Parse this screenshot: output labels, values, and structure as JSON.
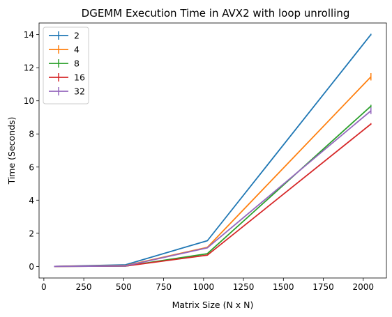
{
  "chart_data": {
    "type": "line",
    "title": "DGEMM Execution Time in AVX2 with loop unrolling",
    "xlabel": "Matrix Size (N x N)",
    "ylabel": "Time (Seconds)",
    "xlim": [
      -30,
      2145
    ],
    "ylim": [
      -0.7,
      14.7
    ],
    "xticks": [
      0,
      250,
      500,
      750,
      1000,
      1250,
      1500,
      1750,
      2000
    ],
    "yticks": [
      0,
      2,
      4,
      6,
      8,
      10,
      12,
      14
    ],
    "x": [
      64,
      512,
      1024,
      2048
    ],
    "grid": false,
    "legend_position": "top-left",
    "series": [
      {
        "name": "2",
        "color": "#1f77b4",
        "values": [
          0.0,
          0.1,
          1.55,
          14.0
        ],
        "errors": [
          0.0,
          0.0,
          0.02,
          0.05
        ]
      },
      {
        "name": "4",
        "color": "#ff7f0e",
        "values": [
          0.0,
          0.05,
          1.15,
          11.45
        ],
        "errors": [
          0.0,
          0.0,
          0.02,
          0.22
        ]
      },
      {
        "name": "8",
        "color": "#2ca02c",
        "values": [
          0.0,
          0.02,
          0.77,
          9.68
        ],
        "errors": [
          0.0,
          0.0,
          0.02,
          0.08
        ]
      },
      {
        "name": "16",
        "color": "#d62728",
        "values": [
          0.0,
          0.02,
          0.68,
          8.6
        ],
        "errors": [
          0.0,
          0.0,
          0.02,
          0.05
        ]
      },
      {
        "name": "32",
        "color": "#9467bd",
        "values": [
          0.0,
          0.03,
          1.12,
          9.4
        ],
        "errors": [
          0.0,
          0.0,
          0.02,
          0.2
        ]
      }
    ]
  }
}
